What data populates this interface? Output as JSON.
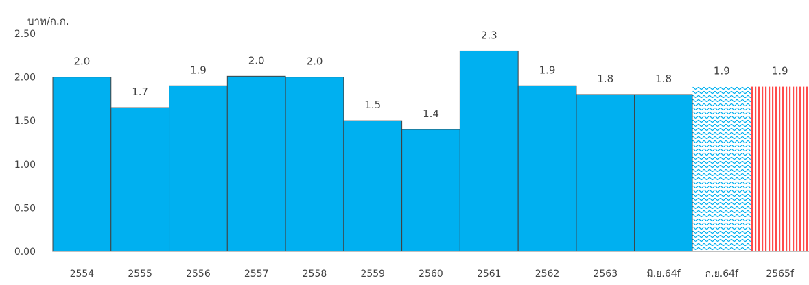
{
  "chart_data": {
    "type": "bar",
    "ylabel": "บาท/ก.ก.",
    "ylim": [
      0,
      2.5
    ],
    "yticks": [
      "0.00",
      "0.50",
      "1.00",
      "1.50",
      "2.00",
      "2.50"
    ],
    "grid": false,
    "categories": [
      "2554",
      "2555",
      "2556",
      "2557",
      "2558",
      "2559",
      "2560",
      "2561",
      "2562",
      "2563",
      "มิ.ย.64f",
      "ก.ย.64f",
      "2565f"
    ],
    "values": [
      2.0,
      1.65,
      1.9,
      2.01,
      2.0,
      1.5,
      1.4,
      2.3,
      1.9,
      1.8,
      1.8,
      1.89,
      1.89
    ],
    "data_labels": [
      "2.0",
      "1.7",
      "1.9",
      "2.0",
      "2.0",
      "1.5",
      "1.4",
      "2.3",
      "1.9",
      "1.8",
      "1.8",
      "1.9",
      "1.9"
    ],
    "bar_styles": [
      "solid",
      "solid",
      "solid",
      "solid",
      "solid",
      "solid",
      "solid",
      "solid",
      "solid",
      "solid",
      "solid",
      "wave",
      "stripe"
    ],
    "colors": {
      "bar_fill": "#00b0f0",
      "bar_stroke": "#404040",
      "wave_fill": "#00b0f0",
      "stripe_fill": "#ff4b4b",
      "axis": "#bfbfbf"
    }
  }
}
